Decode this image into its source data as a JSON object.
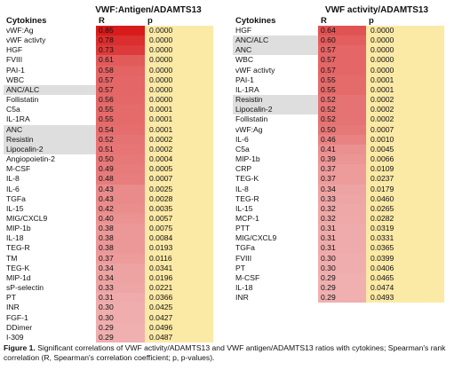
{
  "left_table": {
    "title": "VWF:Antigen/ADAMTS13",
    "col_cytokines": "Cytokines",
    "col_r": "R",
    "col_p": "p",
    "rows": [
      {
        "name": "vWF:Ag",
        "r": "0.85",
        "p": "0.0000",
        "rv": 0.85,
        "hl": false
      },
      {
        "name": "vWF activty",
        "r": "0.78",
        "p": "0.0000",
        "rv": 0.78,
        "hl": false
      },
      {
        "name": "HGF",
        "r": "0.73",
        "p": "0.0000",
        "rv": 0.73,
        "hl": false
      },
      {
        "name": "FVIII",
        "r": "0.61",
        "p": "0.0000",
        "rv": 0.61,
        "hl": false
      },
      {
        "name": "PAI-1",
        "r": "0.58",
        "p": "0.0000",
        "rv": 0.58,
        "hl": false
      },
      {
        "name": "WBC",
        "r": "0.57",
        "p": "0.0000",
        "rv": 0.57,
        "hl": false
      },
      {
        "name": "ANC/ALC",
        "r": "0.57",
        "p": "0.0000",
        "rv": 0.57,
        "hl": true
      },
      {
        "name": "Follistatin",
        "r": "0.56",
        "p": "0.0000",
        "rv": 0.56,
        "hl": false
      },
      {
        "name": "C5a",
        "r": "0.55",
        "p": "0.0001",
        "rv": 0.55,
        "hl": false
      },
      {
        "name": "IL-1RA",
        "r": "0.55",
        "p": "0.0001",
        "rv": 0.55,
        "hl": false
      },
      {
        "name": "ANC",
        "r": "0.54",
        "p": "0.0001",
        "rv": 0.54,
        "hl": true
      },
      {
        "name": "Resistin",
        "r": "0.52",
        "p": "0.0002",
        "rv": 0.52,
        "hl": true
      },
      {
        "name": "Lipocalin-2",
        "r": "0.51",
        "p": "0.0002",
        "rv": 0.51,
        "hl": true
      },
      {
        "name": "Angiopoietin-2",
        "r": "0.50",
        "p": "0.0004",
        "rv": 0.5,
        "hl": false
      },
      {
        "name": "M-CSF",
        "r": "0.49",
        "p": "0.0005",
        "rv": 0.49,
        "hl": false
      },
      {
        "name": "IL-8",
        "r": "0.48",
        "p": "0.0007",
        "rv": 0.48,
        "hl": false
      },
      {
        "name": "IL-6",
        "r": "0.43",
        "p": "0.0025",
        "rv": 0.43,
        "hl": false
      },
      {
        "name": "TGFa",
        "r": "0.43",
        "p": "0.0028",
        "rv": 0.43,
        "hl": false
      },
      {
        "name": "IL-15",
        "r": "0.42",
        "p": "0.0035",
        "rv": 0.42,
        "hl": false
      },
      {
        "name": "MIG/CXCL9",
        "r": "0.40",
        "p": "0.0057",
        "rv": 0.4,
        "hl": false
      },
      {
        "name": "MIP-1b",
        "r": "0.38",
        "p": "0.0075",
        "rv": 0.38,
        "hl": false
      },
      {
        "name": "IL-18",
        "r": "0.38",
        "p": "0.0084",
        "rv": 0.38,
        "hl": false
      },
      {
        "name": "TEG-R",
        "r": "0.38",
        "p": "0.0193",
        "rv": 0.38,
        "hl": false
      },
      {
        "name": "TM",
        "r": "0.37",
        "p": "0.0116",
        "rv": 0.37,
        "hl": false
      },
      {
        "name": "TEG-K",
        "r": "0.34",
        "p": "0.0341",
        "rv": 0.34,
        "hl": false
      },
      {
        "name": "MIP-1d",
        "r": "0.34",
        "p": "0.0196",
        "rv": 0.34,
        "hl": false
      },
      {
        "name": "sP-selectin",
        "r": "0.33",
        "p": "0.0221",
        "rv": 0.33,
        "hl": false
      },
      {
        "name": "PT",
        "r": "0.31",
        "p": "0.0366",
        "rv": 0.31,
        "hl": false
      },
      {
        "name": "INR",
        "r": "0.30",
        "p": "0.0425",
        "rv": 0.3,
        "hl": false
      },
      {
        "name": "FGF-1",
        "r": "0.30",
        "p": "0.0427",
        "rv": 0.3,
        "hl": false
      },
      {
        "name": "DDimer",
        "r": "0.29",
        "p": "0.0496",
        "rv": 0.29,
        "hl": false
      },
      {
        "name": "I-309",
        "r": "0.29",
        "p": "0.0487",
        "rv": 0.29,
        "hl": false
      }
    ]
  },
  "right_table": {
    "title": "VWF activity/ADAMTS13",
    "col_cytokines": "Cytokines",
    "col_r": "R",
    "col_p": "p",
    "rows": [
      {
        "name": "HGF",
        "r": "0.64",
        "p": "0.0000",
        "rv": 0.64,
        "hl": false
      },
      {
        "name": "ANC/ALC",
        "r": "0.60",
        "p": "0.0000",
        "rv": 0.6,
        "hl": true
      },
      {
        "name": "ANC",
        "r": "0.57",
        "p": "0.0000",
        "rv": 0.57,
        "hl": true
      },
      {
        "name": "WBC",
        "r": "0.57",
        "p": "0.0000",
        "rv": 0.57,
        "hl": false
      },
      {
        "name": "vWF activty",
        "r": "0.57",
        "p": "0.0000",
        "rv": 0.57,
        "hl": false
      },
      {
        "name": "PAI-1",
        "r": "0.55",
        "p": "0.0001",
        "rv": 0.55,
        "hl": false
      },
      {
        "name": "IL-1RA",
        "r": "0.55",
        "p": "0.0001",
        "rv": 0.55,
        "hl": false
      },
      {
        "name": "Resistin",
        "r": "0.52",
        "p": "0.0002",
        "rv": 0.52,
        "hl": true
      },
      {
        "name": "Lipocalin-2",
        "r": "0.52",
        "p": "0.0002",
        "rv": 0.52,
        "hl": true
      },
      {
        "name": "Follistatin",
        "r": "0.52",
        "p": "0.0002",
        "rv": 0.52,
        "hl": false
      },
      {
        "name": "vWF:Ag",
        "r": "0.50",
        "p": "0.0007",
        "rv": 0.5,
        "hl": false
      },
      {
        "name": "IL-6",
        "r": "0.46",
        "p": "0.0010",
        "rv": 0.46,
        "hl": false
      },
      {
        "name": "C5a",
        "r": "0.41",
        "p": "0.0045",
        "rv": 0.41,
        "hl": false
      },
      {
        "name": "MIP-1b",
        "r": "0.39",
        "p": "0.0066",
        "rv": 0.39,
        "hl": false
      },
      {
        "name": "CRP",
        "r": "0.37",
        "p": "0.0109",
        "rv": 0.37,
        "hl": false
      },
      {
        "name": "TEG-K",
        "r": "0.37",
        "p": "0.0237",
        "rv": 0.37,
        "hl": false
      },
      {
        "name": "IL-8",
        "r": "0.34",
        "p": "0.0179",
        "rv": 0.34,
        "hl": false
      },
      {
        "name": "TEG-R",
        "r": "0.33",
        "p": "0.0460",
        "rv": 0.33,
        "hl": false
      },
      {
        "name": "IL-15",
        "r": "0.32",
        "p": "0.0265",
        "rv": 0.32,
        "hl": false
      },
      {
        "name": "MCP-1",
        "r": "0.32",
        "p": "0.0282",
        "rv": 0.32,
        "hl": false
      },
      {
        "name": "PTT",
        "r": "0.31",
        "p": "0.0319",
        "rv": 0.31,
        "hl": false
      },
      {
        "name": "MIG/CXCL9",
        "r": "0.31",
        "p": "0.0331",
        "rv": 0.31,
        "hl": false
      },
      {
        "name": "TGFa",
        "r": "0.31",
        "p": "0.0365",
        "rv": 0.31,
        "hl": false
      },
      {
        "name": "FVIII",
        "r": "0.30",
        "p": "0.0399",
        "rv": 0.3,
        "hl": false
      },
      {
        "name": "PT",
        "r": "0.30",
        "p": "0.0406",
        "rv": 0.3,
        "hl": false
      },
      {
        "name": "M-CSF",
        "r": "0.29",
        "p": "0.0465",
        "rv": 0.29,
        "hl": false
      },
      {
        "name": "IL-18",
        "r": "0.29",
        "p": "0.0474",
        "rv": 0.29,
        "hl": false
      },
      {
        "name": "INR",
        "r": "0.29",
        "p": "0.0493",
        "rv": 0.29,
        "hl": false
      }
    ]
  },
  "colors": {
    "r_max": "#d81b1b",
    "r_min": "#f0b0b0",
    "p_fill": "#fbe9a6",
    "highlight": "#dedede"
  },
  "caption": {
    "label": "Figure 1.",
    "text": " Significant correlations of VWF activity/ADAMTS13 and VWF antigen/ADAMTS13 ratios with cytokines; Spearman's rank correlation (R, Spearman's correlation coefficient; p, p-values)."
  }
}
